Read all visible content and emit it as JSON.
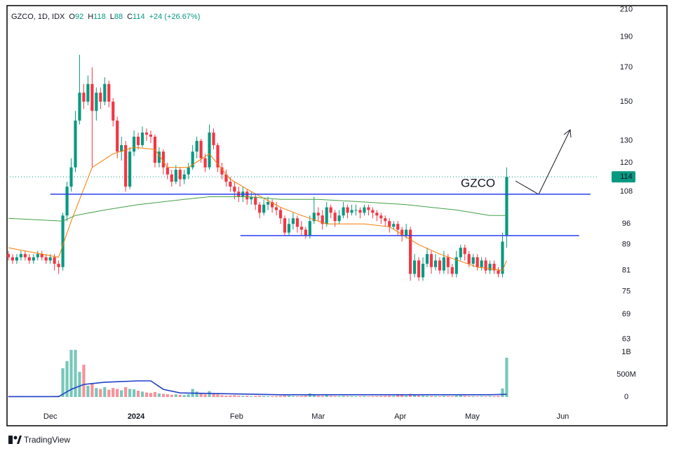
{
  "chart_data": {
    "type": "candlestick",
    "header": {
      "symbol": "GZCO, 1D, IDX",
      "fields": [
        {
          "label": "O",
          "value": 92
        },
        {
          "label": "H",
          "value": 118
        },
        {
          "label": "L",
          "value": 88
        },
        {
          "label": "C",
          "value": 114
        }
      ],
      "change": "+24 (+26.67%)"
    },
    "open": [
      86,
      85,
      84,
      85,
      86,
      85,
      84,
      85,
      86,
      85,
      84,
      85,
      83,
      82,
      99,
      110,
      118,
      140,
      155,
      150,
      160,
      145,
      155,
      150,
      160,
      150,
      140,
      125,
      128,
      110,
      125,
      132,
      128,
      134,
      133,
      132,
      120,
      125,
      118,
      115,
      112,
      117,
      113,
      115,
      118,
      125,
      130,
      122,
      118,
      134,
      128,
      118,
      115,
      112,
      110,
      108,
      106,
      108,
      105,
      106,
      103,
      100,
      103,
      104,
      102,
      101,
      98,
      93,
      96,
      98,
      95,
      94,
      92,
      97,
      100,
      99,
      96,
      102,
      100,
      97,
      99,
      102,
      100,
      101,
      101,
      100,
      102,
      101,
      100,
      99,
      98,
      97,
      95,
      96,
      94,
      92,
      94,
      80,
      84,
      79,
      83,
      86,
      82,
      84,
      81,
      85,
      82,
      80,
      85,
      88,
      86,
      83,
      85,
      82,
      84,
      81,
      83,
      81,
      80,
      92
    ],
    "high": [
      87,
      86,
      86,
      87,
      87,
      86,
      86,
      87,
      87,
      86,
      86,
      86,
      84,
      100,
      112,
      122,
      145,
      178,
      160,
      165,
      170,
      158,
      158,
      164,
      162,
      152,
      142,
      132,
      130,
      127,
      135,
      134,
      137,
      136,
      135,
      133,
      127,
      126,
      120,
      117,
      119,
      118,
      117,
      120,
      128,
      132,
      131,
      124,
      138,
      136,
      129,
      120,
      117,
      114,
      112,
      110,
      110,
      109,
      108,
      107,
      104,
      105,
      106,
      105,
      104,
      102,
      99,
      98,
      100,
      99,
      97,
      95,
      99,
      106,
      102,
      101,
      104,
      103,
      101,
      101,
      104,
      103,
      103,
      103,
      102,
      103,
      103,
      102,
      101,
      100,
      99,
      98,
      97,
      97,
      95,
      96,
      95,
      86,
      85,
      85,
      88,
      87,
      86,
      85,
      87,
      86,
      83,
      87,
      89,
      89,
      87,
      86,
      86,
      85,
      85,
      84,
      84,
      82,
      93,
      118
    ],
    "low": [
      84,
      83,
      83,
      84,
      84,
      83,
      83,
      84,
      84,
      83,
      83,
      81,
      80,
      81,
      97,
      108,
      116,
      138,
      146,
      148,
      118,
      140,
      146,
      148,
      147,
      137,
      122,
      121,
      108,
      109,
      123,
      126,
      127,
      130,
      129,
      118,
      118,
      115,
      113,
      110,
      111,
      110,
      111,
      113,
      117,
      122,
      120,
      116,
      117,
      126,
      116,
      113,
      110,
      108,
      105,
      104,
      104,
      103,
      103,
      101,
      98,
      99,
      101,
      100,
      99,
      96,
      92,
      92,
      94,
      93,
      92,
      91,
      91,
      96,
      97,
      94,
      95,
      98,
      95,
      96,
      98,
      98,
      99,
      99,
      98,
      99,
      99,
      98,
      97,
      96,
      95,
      93,
      94,
      92,
      90,
      91,
      78,
      79,
      78,
      78,
      82,
      80,
      81,
      80,
      80,
      80,
      79,
      79,
      84,
      84,
      82,
      82,
      81,
      81,
      80,
      80,
      80,
      79,
      79,
      88
    ],
    "close": [
      85,
      84,
      85,
      86,
      85,
      84,
      85,
      86,
      85,
      84,
      85,
      83,
      82,
      99,
      110,
      118,
      140,
      155,
      150,
      160,
      145,
      155,
      150,
      160,
      150,
      140,
      125,
      128,
      110,
      125,
      132,
      128,
      134,
      133,
      132,
      120,
      125,
      118,
      115,
      112,
      117,
      113,
      115,
      118,
      125,
      130,
      122,
      118,
      134,
      128,
      118,
      115,
      112,
      110,
      108,
      106,
      108,
      105,
      106,
      103,
      100,
      103,
      104,
      102,
      101,
      98,
      93,
      96,
      98,
      95,
      94,
      92,
      97,
      100,
      99,
      96,
      102,
      100,
      97,
      99,
      102,
      100,
      101,
      101,
      100,
      102,
      101,
      100,
      99,
      98,
      97,
      95,
      96,
      94,
      92,
      94,
      80,
      84,
      79,
      83,
      86,
      82,
      84,
      81,
      85,
      82,
      80,
      85,
      88,
      86,
      83,
      85,
      82,
      84,
      81,
      83,
      81,
      80,
      90,
      114
    ],
    "volume": [
      20000000,
      15000000,
      18000000,
      22000000,
      15000000,
      12000000,
      18000000,
      20000000,
      15000000,
      12000000,
      18000000,
      25000000,
      30000000,
      640000000,
      800000000,
      1050000000,
      1050000000,
      560000000,
      720000000,
      250000000,
      300000000,
      200000000,
      180000000,
      220000000,
      160000000,
      200000000,
      180000000,
      150000000,
      220000000,
      180000000,
      170000000,
      140000000,
      120000000,
      100000000,
      90000000,
      110000000,
      80000000,
      70000000,
      60000000,
      50000000,
      60000000,
      50000000,
      45000000,
      60000000,
      180000000,
      120000000,
      90000000,
      60000000,
      130000000,
      80000000,
      60000000,
      40000000,
      30000000,
      35000000,
      40000000,
      30000000,
      25000000,
      30000000,
      20000000,
      25000000,
      30000000,
      25000000,
      20000000,
      18000000,
      20000000,
      25000000,
      35000000,
      30000000,
      20000000,
      18000000,
      22000000,
      30000000,
      80000000,
      60000000,
      30000000,
      25000000,
      40000000,
      25000000,
      20000000,
      18000000,
      25000000,
      20000000,
      18000000,
      15000000,
      18000000,
      20000000,
      15000000,
      18000000,
      20000000,
      22000000,
      25000000,
      30000000,
      25000000,
      40000000,
      50000000,
      30000000,
      70000000,
      40000000,
      35000000,
      30000000,
      25000000,
      22000000,
      20000000,
      18000000,
      25000000,
      20000000,
      18000000,
      30000000,
      35000000,
      25000000,
      20000000,
      18000000,
      15000000,
      18000000,
      15000000,
      20000000,
      18000000,
      25000000,
      190000000,
      875000000
    ],
    "series": [
      {
        "color": "#f57c00",
        "x": [
          0,
          12,
          15,
          20,
          25,
          30,
          35,
          38,
          43,
          48,
          53,
          58,
          65,
          70,
          76,
          85,
          91,
          98,
          103,
          112,
          118,
          119
        ],
        "values": [
          88,
          85,
          97,
          118,
          124,
          127,
          126,
          118,
          118,
          124,
          113,
          108,
          102,
          99,
          96,
          96,
          95,
          89,
          86,
          82,
          81,
          84
        ]
      },
      {
        "color": "#43a047",
        "x": [
          0,
          13,
          16,
          23,
          31,
          42,
          48,
          57,
          65,
          74,
          85,
          95,
          107,
          115,
          119
        ],
        "values": [
          98,
          97,
          99,
          101,
          103,
          105,
          106,
          106,
          105,
          105,
          104,
          103,
          101,
          99,
          99
        ]
      },
      {
        "color": "#1e40c8",
        "axis": "y2",
        "x": [
          0,
          12,
          15,
          18,
          23,
          31,
          34,
          37,
          41,
          48,
          65,
          115,
          119
        ],
        "values": [
          10000000,
          10000000,
          170000000,
          280000000,
          330000000,
          360000000,
          360000000,
          170000000,
          90000000,
          80000000,
          50000000,
          50000000,
          60000000
        ]
      }
    ],
    "levels": [
      {
        "value": 107,
        "x": [
          10,
          139
        ],
        "color": "#2a3ff0"
      },
      {
        "value": 92,
        "x": [
          55.4,
          136.3
        ],
        "color": "#2a3ff0"
      }
    ],
    "annotation": "GZCO",
    "last_price": 114,
    "up_color": "#089981",
    "down_color": "#f23645",
    "xlim": [
      -0.33,
      140.7
    ],
    "xticks": [
      {
        "value": 10,
        "label": "Dec"
      },
      {
        "value": 30.5,
        "label": "2024"
      },
      {
        "value": 54.5,
        "label": "Feb"
      },
      {
        "value": 74,
        "label": "Mar"
      },
      {
        "value": 93.6,
        "label": "Apr"
      },
      {
        "value": 110.8,
        "label": "May"
      },
      {
        "value": 132.4,
        "label": "Jun"
      }
    ],
    "ylim": [
      62,
      213
    ],
    "log_scale": true,
    "yticks": [
      63,
      69,
      75,
      81,
      89,
      96,
      108,
      120,
      130,
      150,
      170,
      190,
      210
    ],
    "y2lim": [
      0,
      1078000000
    ],
    "y2ticks": [
      0,
      {
        "value": 500000000,
        "label": "500M"
      },
      {
        "value": 1000000000,
        "label": "1B"
      }
    ],
    "branding": "TradingView"
  }
}
